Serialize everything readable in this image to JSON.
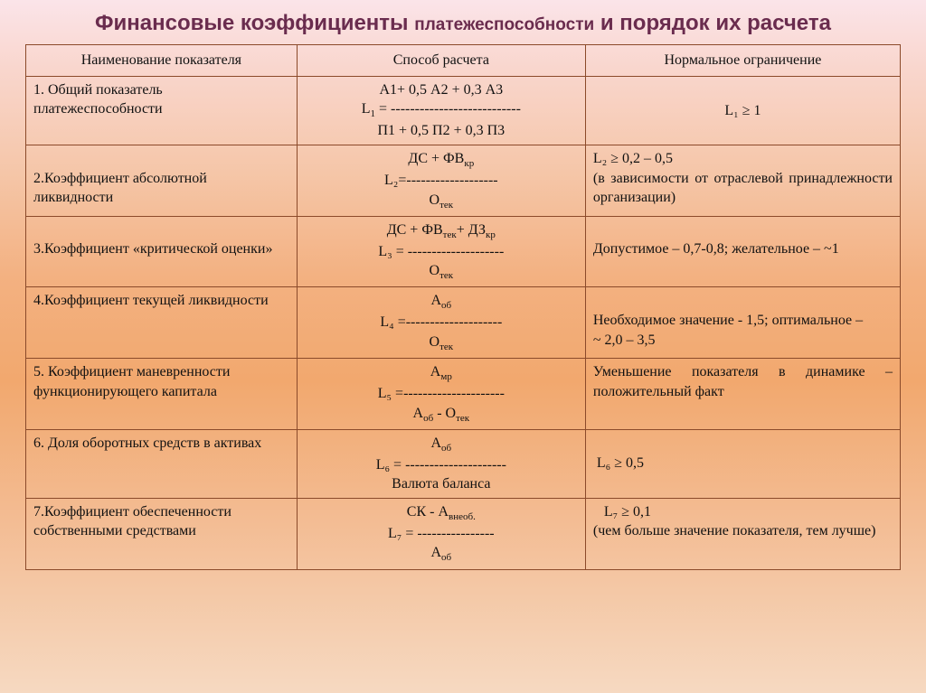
{
  "title_part1": "Финансовые коэффициенты",
  "title_part2": "платежеспособности",
  "title_part3": "и порядок их расчета",
  "headers": {
    "col1": "Наименование показателя",
    "col2": "Способ расчета",
    "col3": "Нормальное ограничение"
  },
  "rows": {
    "r1": {
      "name": "1. Общий показатель платежеспособности",
      "f_top": "А1+ 0,5 А2 + 0,3 А3",
      "f_mid_left": "L",
      "f_mid_sub": "1",
      "f_mid_eq": " = ---------------------------",
      "f_bot": "П1 + 0,5 П2 + 0,3 П3",
      "limit": "L₁ ≥ 1"
    },
    "r2": {
      "name": "2.Коэффициент абсолютной ликвидности",
      "f_top_a": "ДС + ФВ",
      "f_top_sub": "кр",
      "f_mid": "L₂=-------------------",
      "f_bot_a": "О",
      "f_bot_sub": "тек",
      "limit_a": "L₂ ≥ 0,2 – 0,5",
      "limit_b": "(в зависимости от отраслевой принадлежности организации)"
    },
    "r3": {
      "name": "3.Коэффициент «критической оценки»",
      "f_top_a": "ДС + ФВ",
      "f_top_sub1": "тек",
      "f_top_b": "+ ДЗ",
      "f_top_sub2": "кр",
      "f_mid": "L₃ = --------------------",
      "f_bot_a": "О",
      "f_bot_sub": "тек",
      "limit": "Допустимое – 0,7-0,8; желательное – ~1"
    },
    "r4": {
      "name": "4.Коэффициент текущей ликвидности",
      "f_top_a": "А",
      "f_top_sub": "об",
      "f_mid": "L₄ =--------------------",
      "f_bot_a": "О",
      "f_bot_sub": "тек",
      "limit_a": "Необходимое значение - 1,5; оптимальное –",
      "limit_b": "~ 2,0 – 3,5"
    },
    "r5": {
      "name": "5. Коэффициент маневренности функционирующего капитала",
      "f_top_a": "А",
      "f_top_sub": "мр",
      "f_mid": "L₅ =---------------------",
      "f_bot_a": "А",
      "f_bot_sub1": "об",
      "f_bot_b": " - О",
      "f_bot_sub2": "тек",
      "limit": "Уменьшение показателя в динамике – положительный факт"
    },
    "r6": {
      "name": "6. Доля оборотных средств в активах",
      "f_top_a": "А",
      "f_top_sub": "об",
      "f_mid": "L₆ = ---------------------",
      "f_bot": "Валюта баланса",
      "limit": "L₆ ≥ 0,5"
    },
    "r7": {
      "name": "7.Коэффициент обеспеченности собственными средствами",
      "f_top_a": "СК - А",
      "f_top_sub": "внеоб.",
      "f_mid": "L₇ = ----------------",
      "f_bot_a": "А",
      "f_bot_sub": "об",
      "limit_a": " L₇ ≥ 0,1",
      "limit_b": "(чем больше значение показателя, тем лучше)"
    }
  }
}
